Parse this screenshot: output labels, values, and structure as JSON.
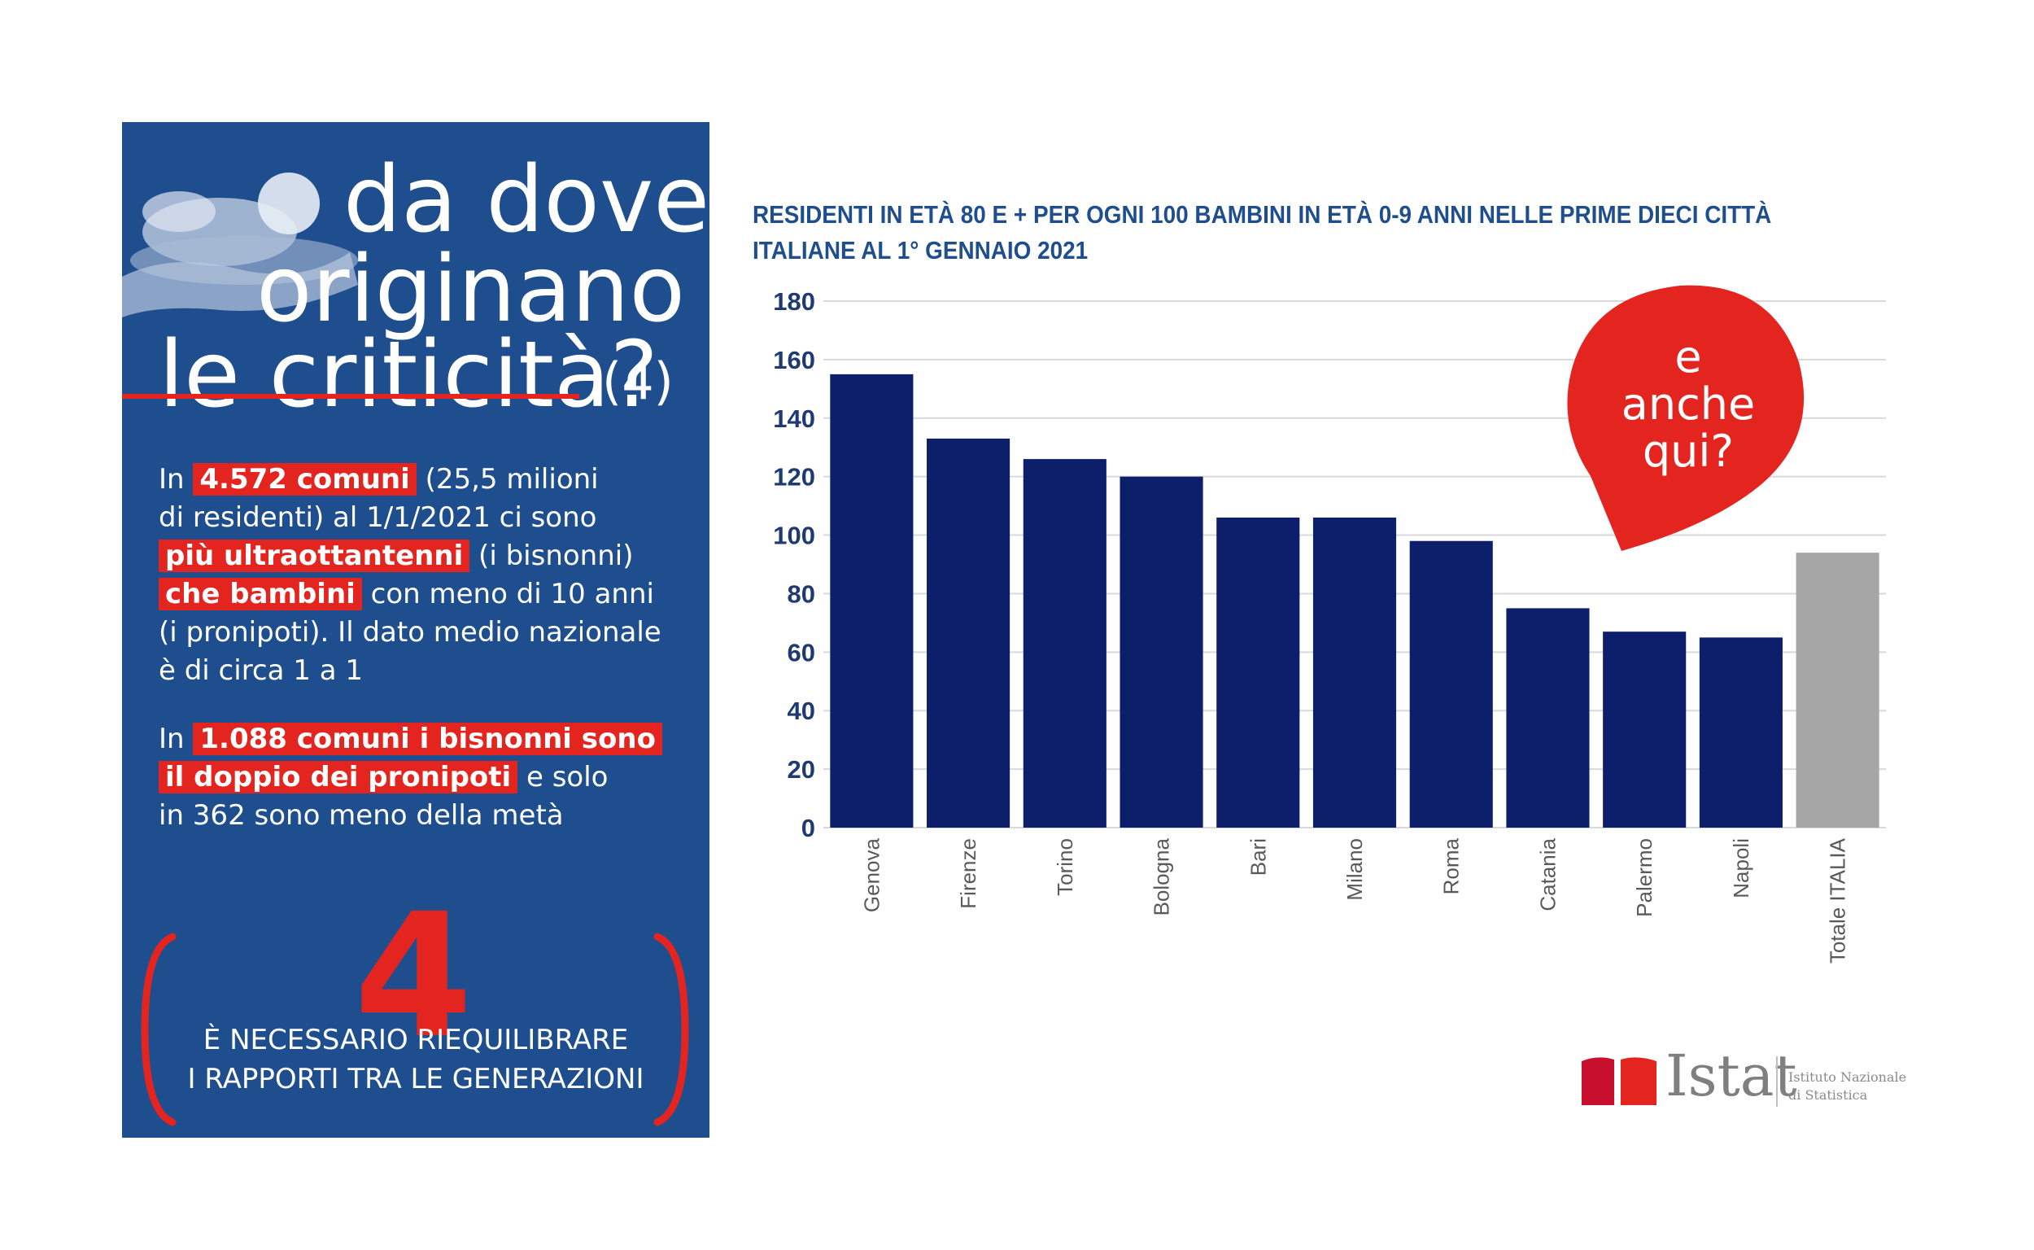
{
  "left_panel": {
    "title_lines": [
      "da dove",
      "originano",
      "le criticità?"
    ],
    "title_number": "(4)",
    "para1": {
      "line1": {
        "pre": "In ",
        "hl": "4.572 comuni",
        "post": " (25,5 milioni"
      },
      "line2": "di residenti)  al 1/1/2021 ci sono",
      "line3": {
        "hl": "più ultraottantenni",
        "post": " (i bisnonni)"
      },
      "line4": {
        "hl": "che bambini",
        "post": " con meno di 10 anni"
      },
      "line5": "(i pronipoti). Il dato medio nazionale",
      "line6": "è di circa 1 a 1"
    },
    "para2": {
      "line1": {
        "pre": "In ",
        "hl": "1.088  comuni i bisnonni sono"
      },
      "line2": {
        "hl": "il doppio dei pronipoti",
        "post": "  e solo"
      },
      "line3": "in 362 sono meno della metà"
    },
    "big_number": "4",
    "footer_lines": [
      "È NECESSARIO RIEQUILIBRARE",
      "I RAPPORTI TRA LE GENERAZIONI"
    ]
  },
  "bubble": {
    "lines": [
      "e",
      "anche",
      "qui?"
    ]
  },
  "logo": {
    "name": "Istat",
    "subtitle": [
      "Istituto Nazionale",
      "di Statistica"
    ]
  },
  "icons": [
    "baby-hands-icon",
    "istat-logo-icon",
    "speech-bubble-icon"
  ],
  "colors": {
    "panel": "#1f4e8f",
    "accent_red": "#e3241f",
    "bar_navy": "#0d1f6b",
    "bar_gray": "#a6a6a6",
    "title_blue": "#1f4e8f"
  },
  "chart_data": {
    "type": "bar",
    "title": [
      "RESIDENTI IN ETÀ 80 E +  PER OGNI 100 BAMBINI IN ETÀ 0-9 ANNI NELLE PRIME DIECI CITTÀ",
      "ITALIANE  AL 1° GENNAIO 2021"
    ],
    "categories": [
      "Genova",
      "Firenze",
      "Torino",
      "Bologna",
      "Bari",
      "Milano",
      "Roma",
      "Catania",
      "Palermo",
      "Napoli",
      "Totale ITALIA"
    ],
    "values": [
      155,
      133,
      126,
      120,
      106,
      106,
      98,
      75,
      67,
      65,
      94
    ],
    "highlight_category": "Totale ITALIA",
    "ylim": [
      0,
      180
    ],
    "yticks": [
      0,
      20,
      40,
      60,
      80,
      100,
      120,
      140,
      160,
      180
    ],
    "grid": true,
    "legend": "none",
    "xlabel": "",
    "ylabel": ""
  }
}
